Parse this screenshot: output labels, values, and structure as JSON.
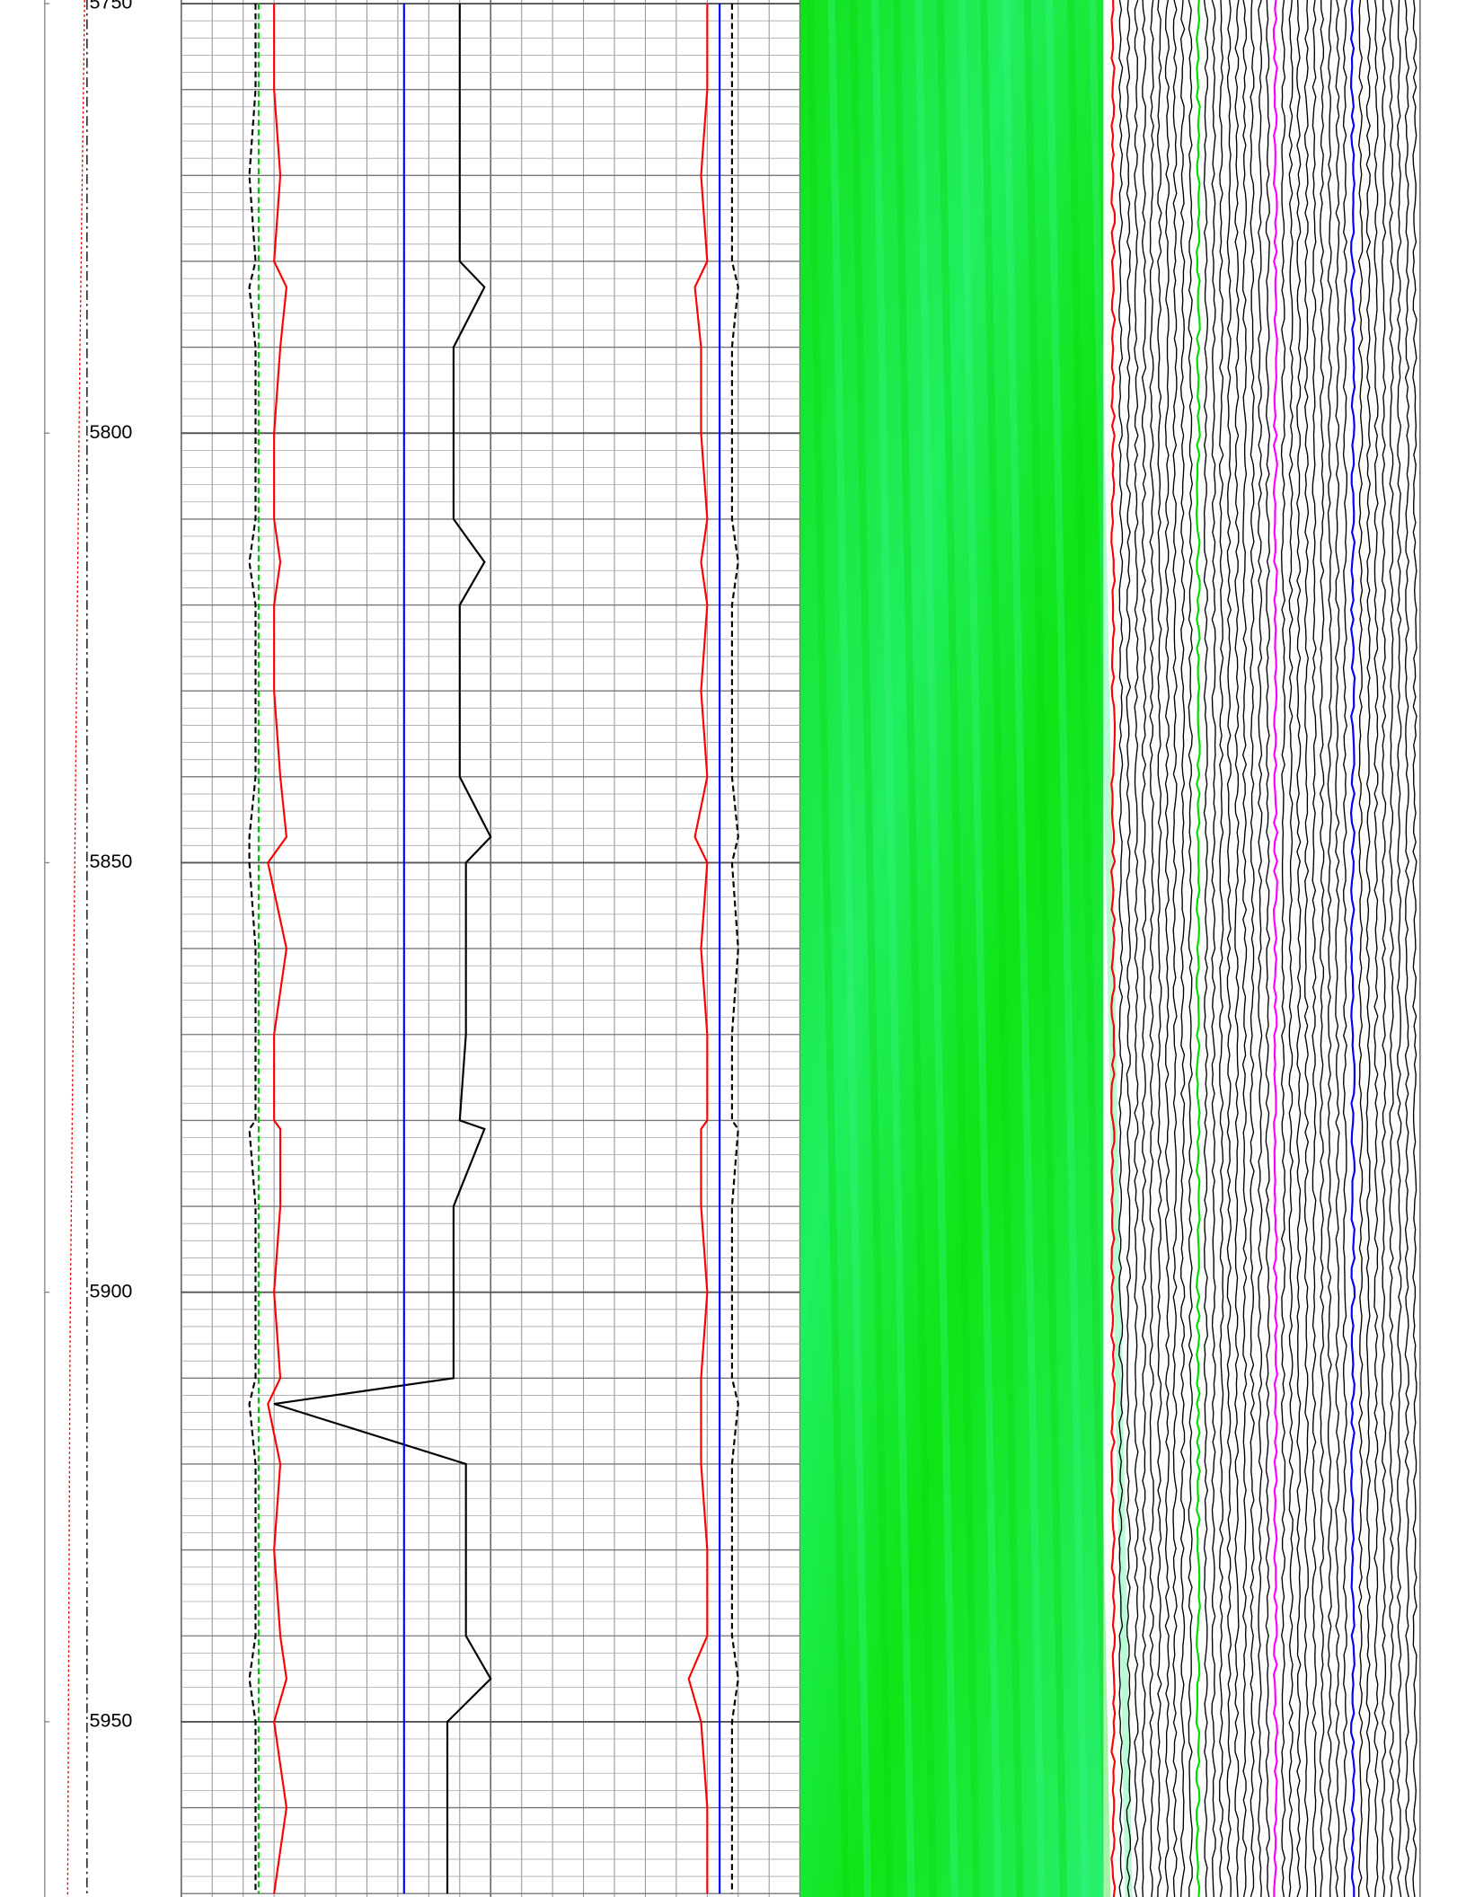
{
  "chart_data": {
    "type": "well-log",
    "ylim": [
      5750,
      5970.4
    ],
    "yticks": [
      5750,
      5800,
      5850,
      5900,
      5950
    ],
    "xlim": [
      0,
      100
    ],
    "x": [
      5750,
      5760,
      5770,
      5780,
      5783,
      5790,
      5800,
      5810,
      5815,
      5820,
      5830,
      5840,
      5847,
      5850,
      5860,
      5870,
      5880,
      5881,
      5890,
      5900,
      5910,
      5913,
      5920,
      5930,
      5940,
      5945,
      5950,
      5960,
      5970
    ],
    "series": [
      {
        "color": "#000000",
        "style": "solid",
        "values": [
          45,
          45,
          45,
          45,
          49,
          44,
          44,
          44,
          49,
          45,
          45,
          45,
          50,
          46,
          46,
          46,
          45,
          49,
          44,
          44,
          44,
          15,
          46,
          46,
          46,
          50,
          43,
          43,
          43
        ]
      },
      {
        "color": "#0000ff",
        "style": "solid",
        "values": [
          36,
          36,
          36,
          36,
          36,
          36,
          36,
          36,
          36,
          36,
          36,
          36,
          36,
          36,
          36,
          36,
          36,
          36,
          36,
          36,
          36,
          36,
          36,
          36,
          36,
          36,
          36,
          36,
          36
        ]
      },
      {
        "color": "#00c000",
        "style": "dashed",
        "values": [
          12.5,
          12.5,
          12.5,
          12.5,
          12.5,
          12.5,
          12.5,
          12.5,
          12.5,
          12.5,
          12.5,
          12.5,
          12.5,
          12.5,
          12.5,
          12.5,
          12.5,
          12.5,
          12.5,
          12.5,
          12.5,
          12.5,
          12.5,
          12.5,
          12.5,
          12.5,
          12.5,
          12.5,
          12.5
        ]
      },
      {
        "color": "#ff0000",
        "style": "solid",
        "values": [
          15,
          15,
          16,
          15,
          17,
          16,
          15,
          15,
          16,
          15,
          15,
          16,
          17,
          14,
          17,
          15,
          15,
          16,
          16,
          15,
          16,
          14,
          16,
          15,
          16,
          17,
          15,
          17,
          15
        ]
      },
      {
        "color": "#000000",
        "style": "dashed",
        "values": [
          12,
          12,
          11,
          12,
          11,
          12,
          12,
          12,
          11,
          12,
          12,
          12,
          11,
          11,
          12,
          12,
          12,
          11,
          12,
          12,
          12,
          11,
          12,
          12,
          12,
          11,
          12,
          12,
          12
        ]
      },
      {
        "color": "#ff0000",
        "style": "solid",
        "values": [
          85,
          85,
          84,
          85,
          83,
          84,
          84,
          85,
          84,
          85,
          84,
          85,
          83,
          85,
          84,
          85,
          85,
          84,
          84,
          85,
          84,
          84,
          84,
          85,
          85,
          82,
          84,
          85,
          85
        ]
      },
      {
        "color": "#0000ff",
        "style": "solid",
        "values": [
          87,
          87,
          87,
          87,
          87,
          87,
          87,
          87,
          87,
          87,
          87,
          87,
          87,
          87,
          87,
          87,
          87,
          87,
          87,
          87,
          87,
          87,
          87,
          87,
          87,
          87,
          87,
          87,
          87
        ]
      },
      {
        "color": "#000000",
        "style": "dashed",
        "values": [
          89,
          89,
          89,
          89,
          90,
          89,
          89,
          89,
          90,
          89,
          89,
          89,
          90,
          89,
          90,
          89,
          89,
          90,
          89,
          89,
          89,
          90,
          89,
          89,
          89,
          90,
          89,
          89,
          89
        ]
      }
    ]
  }
}
